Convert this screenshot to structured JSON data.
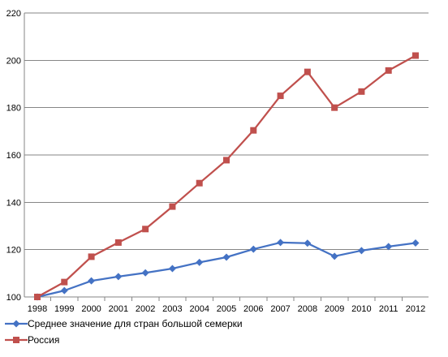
{
  "chart_data": {
    "type": "line",
    "title": "",
    "xlabel": "",
    "ylabel": "",
    "ylim": [
      100,
      220
    ],
    "yticks": [
      100,
      120,
      140,
      160,
      180,
      200,
      220
    ],
    "grid": "horizontal",
    "legend_position": "bottom-left",
    "x": [
      "1998",
      "1999",
      "2000",
      "2001",
      "2002",
      "2003",
      "2004",
      "2005",
      "2006",
      "2007",
      "2008",
      "2009",
      "2010",
      "2011",
      "2012"
    ],
    "series": [
      {
        "name": "Среднее значение для стран большой семерки",
        "color": "#4472C4",
        "marker": "diamond",
        "values": [
          100,
          102.7,
          106.8,
          108.6,
          110.2,
          112.0,
          114.6,
          116.8,
          120.2,
          123.0,
          122.7,
          117.2,
          119.6,
          121.3,
          122.8
        ]
      },
      {
        "name": "Россия",
        "color": "#C0504D",
        "marker": "square",
        "values": [
          100,
          106.3,
          117.0,
          123.0,
          128.7,
          138.2,
          148.1,
          157.8,
          170.4,
          185.0,
          195.1,
          180.0,
          186.8,
          195.7,
          202.0
        ]
      }
    ]
  }
}
